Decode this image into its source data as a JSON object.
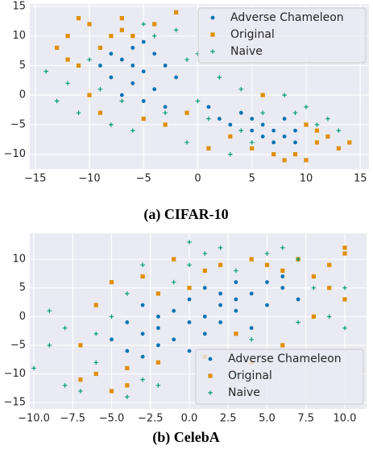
{
  "chart_data": [
    {
      "type": "scatter",
      "caption": "(a) CIFAR-10",
      "legend": "upper right",
      "xlim": [
        -15.5,
        15.8
      ],
      "ylim": [
        -12.5,
        15.4
      ],
      "xticks": [
        {
          "value": -15,
          "label": "−15"
        },
        {
          "value": -10,
          "label": "−10"
        },
        {
          "value": -5,
          "label": "−5"
        },
        0,
        5,
        10,
        15
      ],
      "yticks": [
        {
          "value": -10,
          "label": "−10"
        },
        {
          "value": -5,
          "label": "−5"
        },
        0,
        5,
        10,
        15
      ],
      "grid": true,
      "series": [
        {
          "name": "Adverse Chameleon",
          "color": "#0173b2",
          "marker": "circle",
          "x": [
            -7,
            -6,
            -5,
            -8,
            -4,
            -6,
            -3,
            -7,
            -5,
            -9,
            -4,
            -2,
            -6,
            -8,
            -3,
            -5,
            6,
            7,
            8,
            5,
            9,
            7,
            4,
            6,
            8,
            3,
            9,
            2,
            5,
            1
          ],
          "y": [
            6,
            5,
            4,
            3,
            7,
            2,
            5,
            0,
            -1,
            5,
            1,
            3,
            8,
            7,
            -2,
            9,
            -5,
            -6,
            -7,
            -4,
            -6,
            -8,
            -3,
            -7,
            -4,
            -5,
            -8,
            -4,
            -6,
            -2
          ]
        },
        {
          "name": "Original",
          "color": "#de8f05",
          "marker": "square",
          "x": [
            -13,
            -12,
            -11,
            -10,
            -8,
            -9,
            -12,
            -11,
            -10,
            -9,
            -7,
            -7,
            -6,
            -4,
            -2,
            -5,
            -3,
            -1,
            1,
            3,
            5,
            7,
            9,
            10,
            11,
            12,
            13,
            14,
            6,
            10,
            8,
            11
          ],
          "y": [
            8,
            10,
            13,
            12,
            10,
            8,
            6,
            5,
            0,
            -3,
            11,
            13,
            10,
            12,
            14,
            -4,
            -5,
            -3,
            -9,
            -7,
            -9,
            -10,
            -10,
            -11,
            -8,
            -7,
            -9,
            -8,
            0,
            -5,
            -11,
            -6
          ]
        },
        {
          "name": "Naive",
          "color": "#029e73",
          "marker": "plus",
          "x": [
            -14,
            -12,
            -13,
            -11,
            -9,
            -8,
            -6,
            -3,
            -1,
            -2,
            -4,
            0,
            2,
            1,
            3,
            4,
            6,
            8,
            10,
            12,
            13,
            9,
            5,
            -5,
            -10,
            -7,
            0,
            11,
            4,
            -1
          ],
          "y": [
            4,
            2,
            -1,
            -3,
            1,
            -5,
            -6,
            -3,
            6,
            11,
            10,
            -1,
            3,
            -4,
            -10,
            -6,
            -3,
            0,
            -2,
            -4,
            -6,
            -3,
            -8,
            12,
            6,
            -1,
            7,
            -5,
            1,
            -8
          ]
        }
      ]
    },
    {
      "type": "scatter",
      "caption": "(b) CelebA",
      "legend": "lower right",
      "xlim": [
        -10.26,
        11.4
      ],
      "ylim": [
        -16.1,
        14.5
      ],
      "xticks": [
        {
          "value": -10,
          "label": "−10.0"
        },
        {
          "value": -7.5,
          "label": "−7.5"
        },
        {
          "value": -5,
          "label": "−5.0"
        },
        {
          "value": -2.5,
          "label": "−2.5"
        },
        {
          "value": 0,
          "label": "0.0"
        },
        {
          "value": 2.5,
          "label": "2.5"
        },
        {
          "value": 5,
          "label": "5.0"
        },
        {
          "value": 7.5,
          "label": "7.5"
        },
        {
          "value": 10,
          "label": "10.0"
        }
      ],
      "yticks": [
        {
          "value": -15,
          "label": "−15"
        },
        {
          "value": -10,
          "label": "−10"
        },
        {
          "value": -5,
          "label": "−5"
        },
        0,
        5,
        10
      ],
      "grid": true,
      "series": [
        {
          "name": "Adverse Chameleon",
          "color": "#0173b2",
          "marker": "circle",
          "x": [
            -3,
            -2,
            -1,
            0,
            1,
            2,
            3,
            -4,
            -3,
            -2,
            0,
            1,
            4,
            5,
            6,
            3,
            -1,
            -4,
            2,
            5,
            6,
            7,
            -2,
            1,
            4,
            -3,
            0,
            3,
            -5,
            2
          ],
          "y": [
            -3,
            -2,
            -4,
            -1,
            0,
            2,
            3,
            -6,
            -7,
            -5,
            3,
            5,
            4,
            6,
            5,
            1,
            1,
            -1,
            -1,
            2,
            7,
            3,
            0,
            -3,
            -2,
            2,
            -6,
            6,
            -4,
            4
          ]
        },
        {
          "name": "Original",
          "color": "#de8f05",
          "marker": "square",
          "x": [
            -7,
            -6,
            -5,
            -4,
            -6,
            -5,
            -3,
            -2,
            -1,
            0,
            1,
            2,
            3,
            4,
            5,
            6,
            7,
            8,
            9,
            10,
            10,
            9,
            10,
            6,
            -4,
            -2,
            1,
            4,
            -7,
            8
          ],
          "y": [
            -5,
            -10,
            -13,
            -12,
            2,
            6,
            7,
            4,
            10,
            5,
            8,
            9,
            -3,
            10,
            9,
            8,
            10,
            7,
            9,
            11,
            12,
            5,
            3,
            -5,
            -9,
            -8,
            -7,
            -8,
            -11,
            0
          ]
        },
        {
          "name": "Naive",
          "color": "#029e73",
          "marker": "plus",
          "x": [
            -10,
            -9,
            -9,
            -8,
            -7,
            -6,
            -4,
            -3,
            -5,
            -3,
            -1,
            1,
            0,
            2,
            3,
            5,
            7,
            8,
            9,
            10,
            10,
            7,
            4,
            -2,
            -6,
            6,
            -8,
            3,
            0,
            -4
          ],
          "y": [
            -9,
            -5,
            1,
            -12,
            -13,
            -8,
            -14,
            -11,
            0,
            9,
            6,
            11,
            13,
            12,
            8,
            11,
            10,
            5,
            0,
            -2,
            5,
            -1,
            -4,
            -12,
            -3,
            12,
            -2,
            -10,
            9,
            4
          ]
        }
      ]
    }
  ]
}
